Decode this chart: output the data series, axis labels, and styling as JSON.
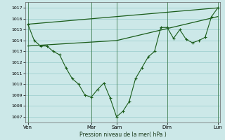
{
  "title": "",
  "xlabel": "Pression niveau de la mer( hPa )",
  "ylabel": "",
  "bg_color": "#cce8e8",
  "grid_color": "#99cccc",
  "line_color": "#1a5c1a",
  "ylim": [
    1006.5,
    1017.5
  ],
  "yticks": [
    1007,
    1008,
    1009,
    1010,
    1011,
    1012,
    1013,
    1014,
    1015,
    1016,
    1017
  ],
  "xtick_labels": [
    "Ven",
    "Mar",
    "Sam",
    "Dim",
    "Lun"
  ],
  "xtick_positions": [
    0,
    5,
    7,
    11,
    15
  ],
  "vlines": [
    0,
    5,
    7,
    11,
    15
  ],
  "line1_x": [
    0,
    0.5,
    1.0,
    1.5,
    2.0,
    2.5,
    3.0,
    3.5,
    4.0,
    4.5,
    5.0,
    5.5,
    6.0,
    6.5,
    7.0,
    7.5,
    8.0,
    8.5,
    9.0,
    9.5,
    10.0,
    10.5,
    11.0,
    11.5,
    12.0,
    12.5,
    13.0,
    13.5,
    14.0,
    14.5,
    15.0
  ],
  "line1_y": [
    1015.5,
    1014.0,
    1013.5,
    1013.5,
    1013.0,
    1012.7,
    1011.5,
    1010.5,
    1010.0,
    1009.0,
    1008.8,
    1009.5,
    1010.1,
    1008.7,
    1007.0,
    1007.5,
    1008.4,
    1010.5,
    1011.5,
    1012.5,
    1013.0,
    1015.2,
    1015.2,
    1014.2,
    1015.0,
    1014.1,
    1013.8,
    1014.0,
    1014.3,
    1016.2,
    1017.0
  ],
  "line2_x": [
    0,
    15
  ],
  "line2_y": [
    1015.5,
    1017.0
  ],
  "line3_x": [
    0,
    7,
    15
  ],
  "line3_y": [
    1013.5,
    1014.0,
    1016.2
  ]
}
